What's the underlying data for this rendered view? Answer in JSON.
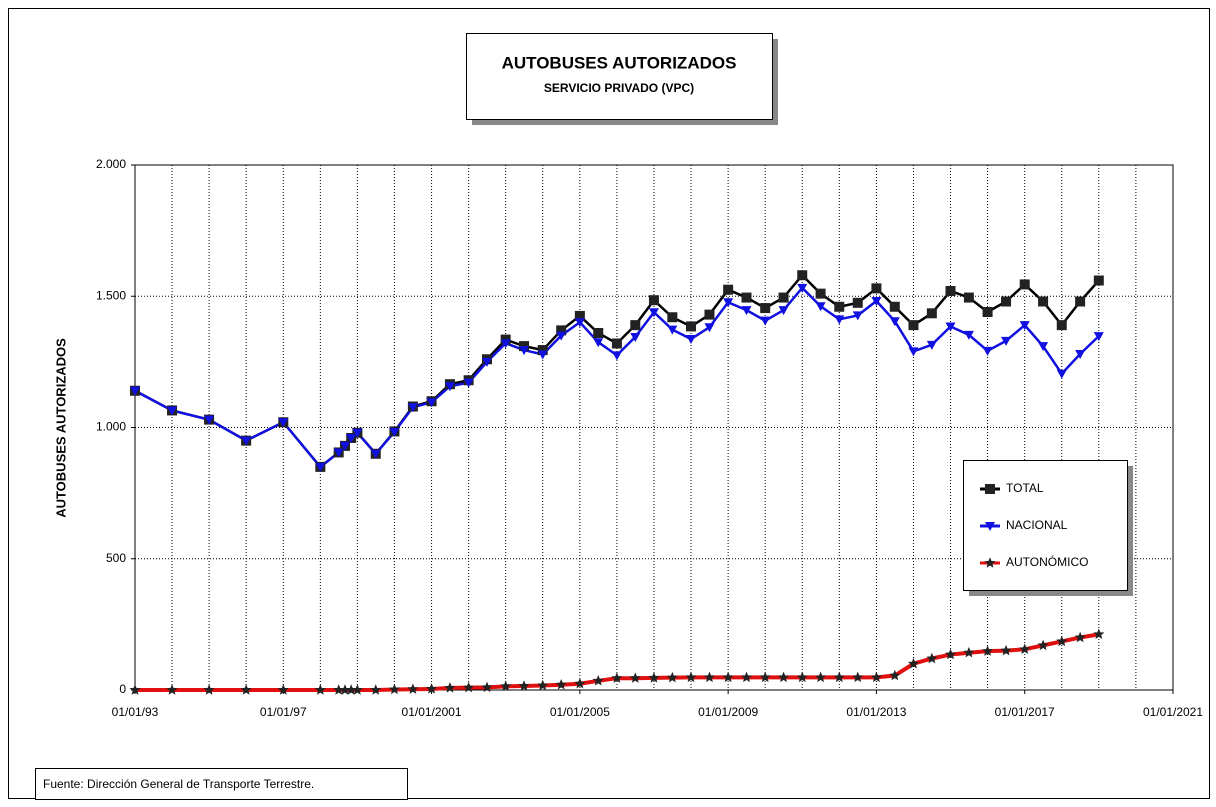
{
  "chart_data": {
    "type": "line",
    "title": "AUTOBUSES AUTORIZADOS",
    "subtitle": "SERVICIO PRIVADO (VPC)",
    "y_label": "AUTOBUSES AUTORIZADOS",
    "source": "Fuente: Dirección General de Transporte Terrestre.",
    "xlim": [
      "1993-01-01",
      "2021-01-01"
    ],
    "xticks": [
      {
        "value": "1993-01-01",
        "label": "01/01/93"
      },
      {
        "value": "1997-01-01",
        "label": "01/01/97"
      },
      {
        "value": "2001-01-01",
        "label": "01/01/2001"
      },
      {
        "value": "2005-01-01",
        "label": "01/01/2005"
      },
      {
        "value": "2009-01-01",
        "label": "01/01/2009"
      },
      {
        "value": "2013-01-01",
        "label": "01/01/2013"
      },
      {
        "value": "2017-01-01",
        "label": "01/01/2017"
      },
      {
        "value": "2021-01-01",
        "label": "01/01/2021"
      }
    ],
    "xgrid": [
      "1994-01-01",
      "1995-01-01",
      "1996-01-01",
      "1997-01-01",
      "1998-01-01",
      "1999-01-01",
      "2000-01-01",
      "2001-01-01",
      "2002-01-01",
      "2003-01-01",
      "2004-01-01",
      "2005-01-01",
      "2006-01-01",
      "2007-01-01",
      "2008-01-01",
      "2009-01-01",
      "2010-01-01",
      "2011-01-01",
      "2012-01-01",
      "2013-01-01",
      "2014-01-01",
      "2015-01-01",
      "2016-01-01",
      "2017-01-01",
      "2018-01-01",
      "2019-01-01",
      "2020-01-01"
    ],
    "ylim": [
      0,
      2000
    ],
    "yticks": [
      0,
      500,
      {
        "value": 1000,
        "label": "1.000"
      },
      {
        "value": 1500,
        "label": "1.500"
      },
      {
        "value": 2000,
        "label": "2.000"
      }
    ],
    "grid": true,
    "legend_position": "right",
    "x": [
      "1993-01-01",
      "1994-01-01",
      "1995-01-01",
      "1996-01-01",
      "1997-01-01",
      "1998-01-01",
      "1998-07-01",
      "1998-09-01",
      "1998-11-01",
      "1999-01-01",
      "1999-07-01",
      "2000-01-01",
      "2000-07-01",
      "2001-01-01",
      "2001-07-01",
      "2002-01-01",
      "2002-07-01",
      "2003-01-01",
      "2003-07-01",
      "2004-01-01",
      "2004-07-01",
      "2005-01-01",
      "2005-07-01",
      "2006-01-01",
      "2006-07-01",
      "2007-01-01",
      "2007-07-01",
      "2008-01-01",
      "2008-07-01",
      "2009-01-01",
      "2009-07-01",
      "2010-01-01",
      "2010-07-01",
      "2011-01-01",
      "2011-07-01",
      "2012-01-01",
      "2012-07-01",
      "2013-01-01",
      "2013-07-01",
      "2014-01-01",
      "2014-07-01",
      "2015-01-01",
      "2015-07-01",
      "2016-01-01",
      "2016-07-01",
      "2017-01-01",
      "2017-07-01",
      "2018-01-01",
      "2018-07-01",
      "2019-01-01"
    ],
    "series": [
      {
        "name": "TOTAL",
        "color": "#000000",
        "marker": "square",
        "values": [
          1140,
          1065,
          1030,
          950,
          1020,
          850,
          905,
          930,
          960,
          980,
          900,
          985,
          1080,
          1100,
          1165,
          1180,
          1260,
          1335,
          1310,
          1295,
          1370,
          1425,
          1360,
          1320,
          1390,
          1485,
          1420,
          1385,
          1430,
          1525,
          1495,
          1455,
          1495,
          1580,
          1510,
          1460,
          1475,
          1530,
          1460,
          1390,
          1435,
          1520,
          1495,
          1440,
          1480,
          1545,
          1480,
          1390,
          1480,
          1560
        ]
      },
      {
        "name": "NACIONAL",
        "color": "#1010e0",
        "marker": "triangle-down",
        "values": [
          1140,
          1065,
          1030,
          950,
          1020,
          850,
          905,
          930,
          960,
          980,
          900,
          983,
          1077,
          1096,
          1157,
          1171,
          1250,
          1321,
          1295,
          1278,
          1350,
          1401,
          1325,
          1275,
          1345,
          1439,
          1373,
          1337,
          1382,
          1477,
          1447,
          1407,
          1447,
          1532,
          1462,
          1412,
          1427,
          1482,
          1405,
          1290,
          1315,
          1385,
          1353,
          1292,
          1330,
          1390,
          1310,
          1205,
          1280,
          1348
        ]
      },
      {
        "name": "AUTONÓMICO",
        "color": "#e01010",
        "marker": "star",
        "values": [
          0,
          0,
          0,
          0,
          0,
          0,
          0,
          0,
          0,
          0,
          0,
          2,
          3,
          4,
          8,
          9,
          10,
          14,
          15,
          17,
          20,
          24,
          35,
          45,
          45,
          46,
          47,
          48,
          48,
          48,
          48,
          48,
          48,
          48,
          48,
          48,
          48,
          48,
          55,
          100,
          120,
          135,
          142,
          148,
          150,
          155,
          170,
          185,
          200,
          212
        ]
      }
    ]
  }
}
